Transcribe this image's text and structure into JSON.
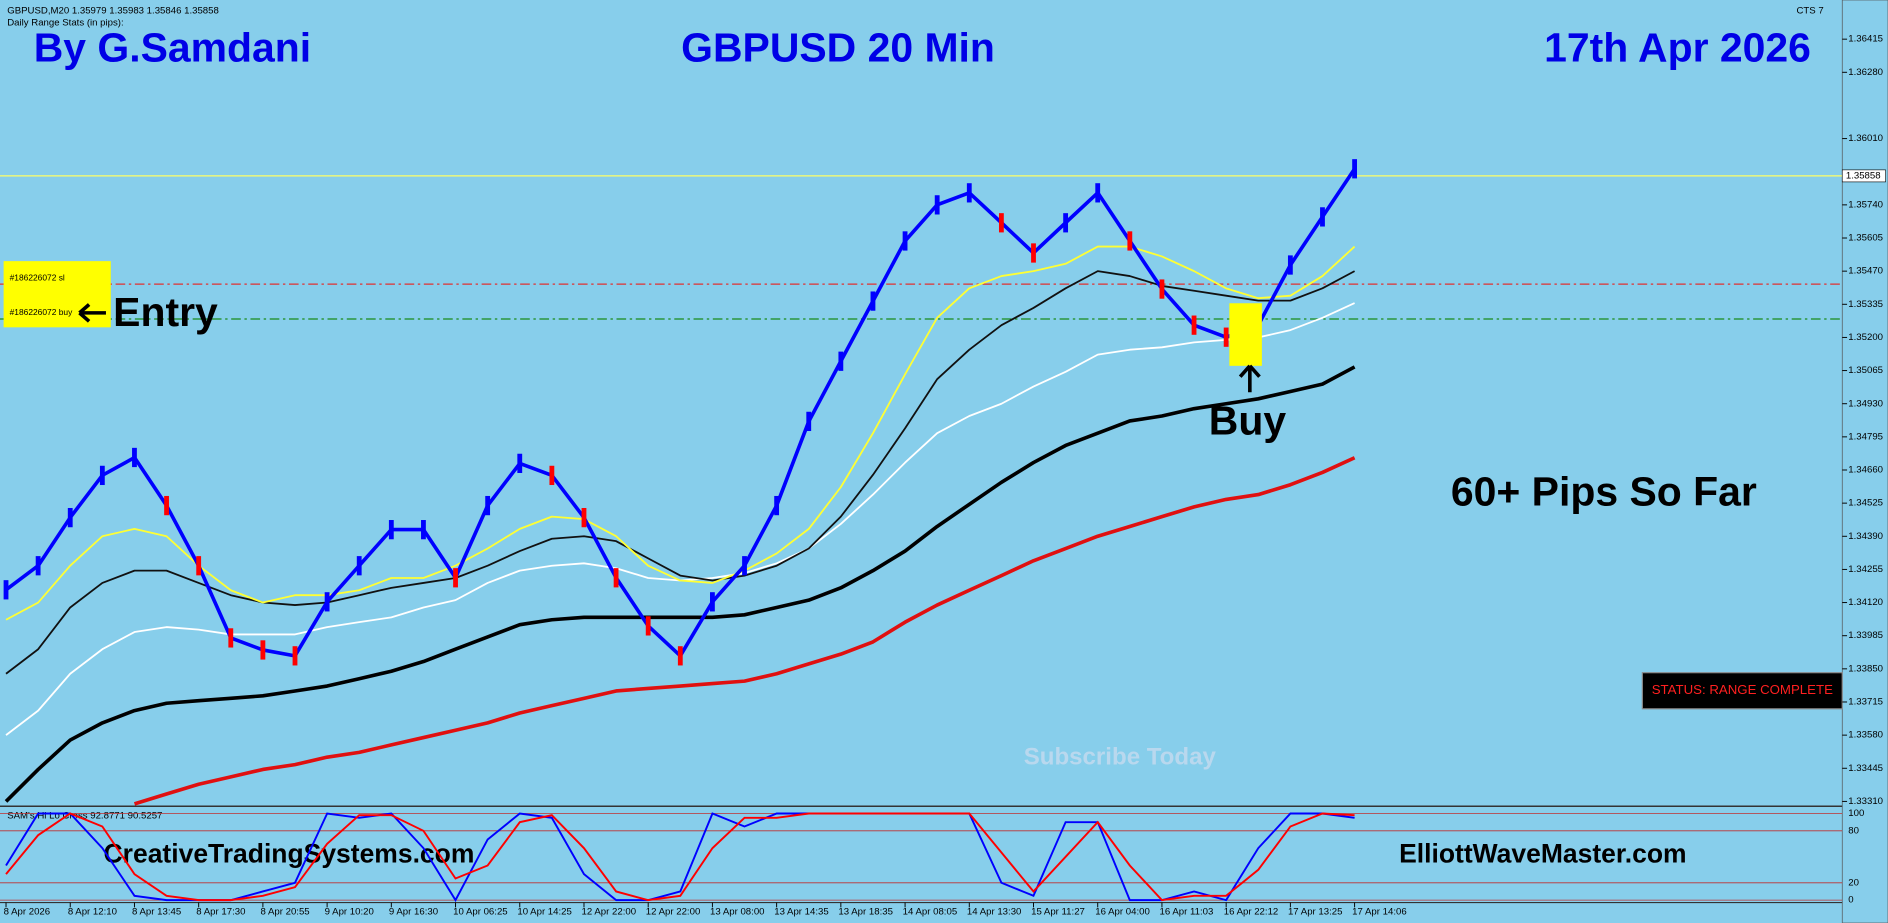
{
  "chart_data": {
    "type": "line",
    "header": "GBPUSD,M20  1.35979 1.35983 1.35846 1.35858",
    "info": "Daily Range Stats (in pips):",
    "platform_tag": "CTS 7",
    "author": "By G.Samdani",
    "title": "GBPUSD 20 Min",
    "date": "17th Apr 2026",
    "entry_label": "Entry",
    "buy_label": "Buy",
    "result": "60+ Pips So Far",
    "watermark": "Subscribe Today",
    "status": "STATUS: RANGE COMPLETE",
    "site_left": "CreativeTradingSystems.com",
    "site_right": "ElliottWaveMaster.com",
    "categories": [
      "8 Apr 2026",
      null,
      "8 Apr 12:10",
      null,
      "8 Apr 13:45",
      null,
      "8 Apr 17:30",
      null,
      "8 Apr 20:55",
      null,
      "9 Apr 10:20",
      null,
      "9 Apr 16:30",
      null,
      "10 Apr 06:25",
      null,
      "10 Apr 14:25",
      null,
      "12 Apr 22:00",
      null,
      "12 Apr 22:00",
      null,
      "13 Apr 08:00",
      null,
      "13 Apr 14:35",
      null,
      "13 Apr 18:35",
      null,
      "14 Apr 08:05",
      null,
      "14 Apr 13:30",
      null,
      "15 Apr 11:27",
      null,
      "16 Apr 04:00",
      null,
      "16 Apr 11:03",
      null,
      "16 Apr 22:12",
      null,
      "17 Apr 13:25",
      null,
      "17 Apr 14:06"
    ],
    "ylim": [
      1.333,
      1.3655
    ],
    "yticks": [
      {
        "value": 1.3331,
        "label": "1.33310"
      },
      {
        "value": 1.33445,
        "label": "1.33445"
      },
      {
        "value": 1.3358,
        "label": "1.33580"
      },
      {
        "value": 1.33715,
        "label": "1.33715"
      },
      {
        "value": 1.3385,
        "label": "1.33850"
      },
      {
        "value": 1.33985,
        "label": "1.33985"
      },
      {
        "value": 1.3412,
        "label": "1.34120"
      },
      {
        "value": 1.34255,
        "label": "1.34255"
      },
      {
        "value": 1.3439,
        "label": "1.34390"
      },
      {
        "value": 1.34525,
        "label": "1.34525"
      },
      {
        "value": 1.3466,
        "label": "1.34660"
      },
      {
        "value": 1.34795,
        "label": "1.34795"
      },
      {
        "value": 1.3493,
        "label": "1.34930"
      },
      {
        "value": 1.35065,
        "label": "1.35065"
      },
      {
        "value": 1.352,
        "label": "1.35200"
      },
      {
        "value": 1.35335,
        "label": "1.35335"
      },
      {
        "value": 1.3547,
        "label": "1.35470"
      },
      {
        "value": 1.35605,
        "label": "1.35605"
      },
      {
        "value": 1.3574,
        "label": "1.35740"
      },
      {
        "value": 1.3601,
        "label": "1.36010"
      },
      {
        "value": 1.3628,
        "label": "1.36280"
      },
      {
        "value": 1.36415,
        "label": "1.36415"
      }
    ],
    "current_price": 1.35858,
    "current_color": "#ffff66",
    "levels": [
      {
        "label": "#186226072 sl",
        "value": 1.35417,
        "color": "#e03030"
      },
      {
        "label": "#186226072 buy",
        "value": 1.35275,
        "color": "#1a8a1a"
      }
    ],
    "series": [
      {
        "color": "#0000ff",
        "down_color": "#ff0000",
        "width": 3,
        "values": [
          1.34172,
          1.3427,
          1.34466,
          1.34638,
          1.34711,
          1.34515,
          1.3427,
          1.33976,
          1.33927,
          1.33903,
          1.34123,
          1.3427,
          1.34417,
          1.34417,
          1.34221,
          1.34515,
          1.34687,
          1.34638,
          1.34466,
          1.34221,
          1.34025,
          1.33903,
          1.34123,
          1.3427,
          1.34515,
          1.34858,
          1.35103,
          1.35348,
          1.35593,
          1.3574,
          1.35789,
          1.35667,
          1.35544,
          1.35667,
          1.35789,
          1.35593,
          1.35397,
          1.3525,
          1.35201,
          1.3525,
          1.35495,
          1.35691,
          1.35887
        ]
      },
      {
        "color": "#ffff33",
        "width": 1.5,
        "values": [
          1.3405,
          1.3412,
          1.3427,
          1.3439,
          1.3442,
          1.3439,
          1.3427,
          1.3417,
          1.3412,
          1.3415,
          1.3415,
          1.3417,
          1.3422,
          1.3422,
          1.3427,
          1.3434,
          1.3442,
          1.3447,
          1.3446,
          1.3439,
          1.3427,
          1.3421,
          1.342,
          1.3425,
          1.3432,
          1.3442,
          1.3459,
          1.3481,
          1.3505,
          1.3528,
          1.354,
          1.3545,
          1.3547,
          1.355,
          1.3557,
          1.3557,
          1.3553,
          1.3547,
          1.354,
          1.3536,
          1.3537,
          1.3545,
          1.3557
        ]
      },
      {
        "color": "#111111",
        "width": 1.5,
        "values": [
          1.3383,
          1.3393,
          1.341,
          1.342,
          1.3425,
          1.3425,
          1.342,
          1.3415,
          1.3412,
          1.3411,
          1.3412,
          1.3415,
          1.3418,
          1.342,
          1.3422,
          1.3427,
          1.3433,
          1.3438,
          1.3439,
          1.3437,
          1.343,
          1.3423,
          1.3421,
          1.3423,
          1.3427,
          1.3434,
          1.3447,
          1.3464,
          1.3483,
          1.3503,
          1.3515,
          1.3525,
          1.3532,
          1.354,
          1.3547,
          1.3545,
          1.3541,
          1.3539,
          1.3537,
          1.3535,
          1.3535,
          1.354,
          1.3547
        ]
      },
      {
        "color": "#ffffff",
        "width": 1.5,
        "values": [
          1.3358,
          1.3368,
          1.3383,
          1.3393,
          1.34,
          1.3402,
          1.3401,
          1.3399,
          1.3399,
          1.3399,
          1.3402,
          1.3404,
          1.3406,
          1.341,
          1.3413,
          1.342,
          1.3425,
          1.3427,
          1.3428,
          1.3426,
          1.3422,
          1.3421,
          1.3422,
          1.3424,
          1.3428,
          1.3434,
          1.3444,
          1.3456,
          1.3469,
          1.3481,
          1.3488,
          1.3493,
          1.35,
          1.3506,
          1.3513,
          1.3515,
          1.3516,
          1.3518,
          1.3519,
          1.352,
          1.3523,
          1.3528,
          1.3534
        ]
      },
      {
        "color": "#000000",
        "width": 3,
        "values": [
          1.3331,
          1.3344,
          1.3356,
          1.3363,
          1.3368,
          1.3371,
          1.3372,
          1.3373,
          1.3374,
          1.3376,
          1.3378,
          1.3381,
          1.3384,
          1.3388,
          1.3393,
          1.3398,
          1.3403,
          1.3405,
          1.3406,
          1.3406,
          1.3406,
          1.3406,
          1.3406,
          1.3407,
          1.341,
          1.3413,
          1.3418,
          1.3425,
          1.3433,
          1.3443,
          1.3452,
          1.3461,
          1.3469,
          1.3476,
          1.3481,
          1.3486,
          1.3488,
          1.3491,
          1.3493,
          1.3495,
          1.3498,
          1.3501,
          1.3508
        ]
      },
      {
        "color": "#e01010",
        "width": 3,
        "values": [
          null,
          null,
          null,
          null,
          1.333,
          1.3334,
          1.3338,
          1.3341,
          1.3344,
          1.3346,
          1.3349,
          1.3351,
          1.3354,
          1.3357,
          1.336,
          1.3363,
          1.3367,
          1.337,
          1.3373,
          1.3376,
          1.3377,
          1.3378,
          1.3379,
          1.338,
          1.3383,
          1.3387,
          1.3391,
          1.3396,
          1.3404,
          1.3411,
          1.3417,
          1.3423,
          1.3429,
          1.3434,
          1.3439,
          1.3443,
          1.3447,
          1.3451,
          1.3454,
          1.3456,
          1.346,
          1.3465,
          1.3471
        ]
      }
    ],
    "oscillator": {
      "title": "SAM's Hi Lo Cross 92.8771 90.5257",
      "ylim": [
        0,
        100
      ],
      "yticks": [
        0,
        20,
        80,
        100
      ],
      "series": [
        {
          "color": "#0000ff",
          "values": [
            40,
            100,
            100,
            60,
            5,
            0,
            0,
            0,
            10,
            20,
            100,
            95,
            100,
            60,
            0,
            70,
            100,
            95,
            30,
            0,
            0,
            10,
            100,
            85,
            100,
            100,
            100,
            100,
            100,
            100,
            100,
            20,
            5,
            90,
            90,
            0,
            0,
            10,
            0,
            60,
            100,
            100,
            95
          ]
        },
        {
          "color": "#ff0000",
          "values": [
            30,
            75,
            100,
            85,
            30,
            5,
            0,
            0,
            5,
            15,
            65,
            98,
            98,
            80,
            25,
            40,
            90,
            98,
            60,
            10,
            0,
            5,
            60,
            95,
            95,
            100,
            100,
            100,
            100,
            100,
            100,
            55,
            10,
            50,
            90,
            40,
            0,
            5,
            5,
            35,
            85,
            100,
            98
          ]
        }
      ]
    }
  }
}
